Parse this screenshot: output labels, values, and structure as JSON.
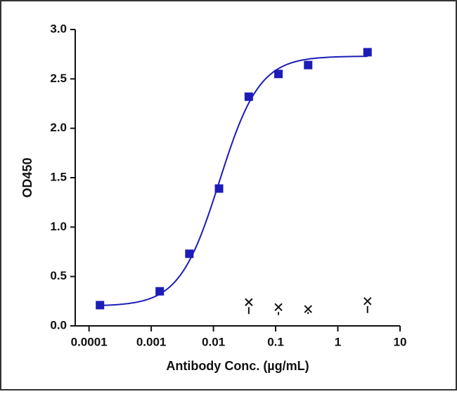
{
  "chart_data": {
    "type": "scatter",
    "x_label": "Antibody Conc. (µg/mL)",
    "y_label": "OD450",
    "x_scale": "log",
    "xlim": [
      6e-05,
      10
    ],
    "xticks": [
      0.0001,
      0.001,
      0.01,
      0.1,
      1,
      10
    ],
    "ylim": [
      0,
      3
    ],
    "yticks": [
      {
        "value": 0,
        "label": "0.0"
      },
      0.5,
      {
        "value": 1,
        "label": "1.0"
      },
      1.5,
      {
        "value": 2,
        "label": "2.0"
      },
      2.5,
      {
        "value": 3,
        "label": "3.0"
      }
    ],
    "series": [
      {
        "color": "#1c1cb8",
        "marker": "square",
        "x": [
          0.00015,
          0.00137,
          0.0041,
          0.0123,
          0.037,
          0.111,
          0.333,
          3
        ],
        "values": [
          0.21,
          0.35,
          0.73,
          1.39,
          2.32,
          2.55,
          2.64,
          2.77
        ],
        "curve": {
          "bottom": 0.2,
          "top": 2.73,
          "ec50": 0.0125,
          "hill": 1.35
        }
      },
      {
        "color": "#111111",
        "marker": "x",
        "x": [
          0.037,
          0.111,
          0.333,
          3
        ],
        "values": [
          0.24,
          0.19,
          0.17,
          0.25
        ],
        "errors": [
          0.12,
          0.08,
          0.03,
          0.12
        ]
      }
    ]
  }
}
